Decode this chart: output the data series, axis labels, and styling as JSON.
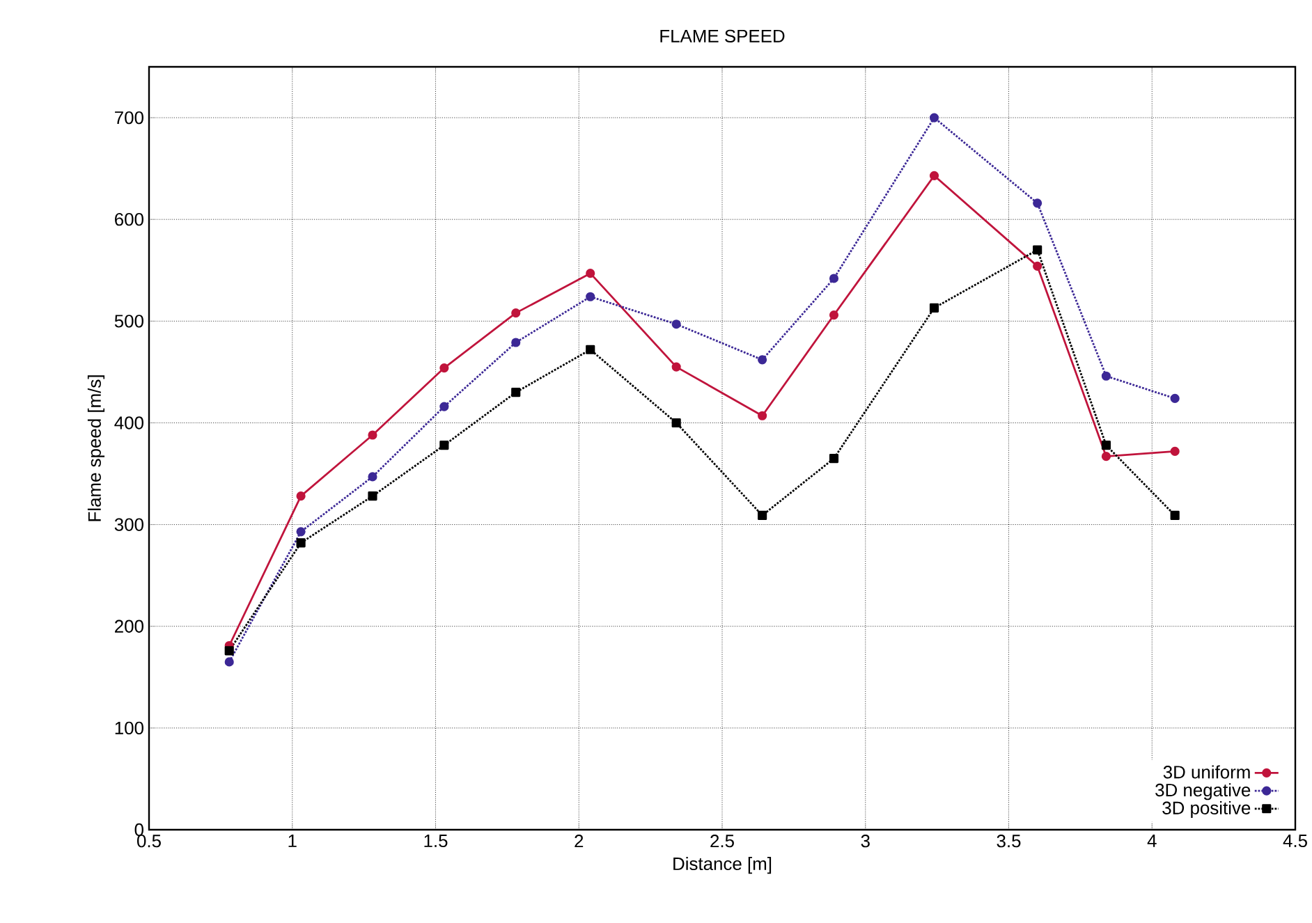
{
  "chart_data": {
    "type": "line",
    "title": "FLAME SPEED",
    "xlabel": "Distance [m]",
    "ylabel": "Flame speed [m/s]",
    "x": [
      0.78,
      1.03,
      1.28,
      1.53,
      1.78,
      2.04,
      2.34,
      2.64,
      2.89,
      3.24,
      3.6,
      3.84,
      4.08
    ],
    "series": [
      {
        "name": "3D uniform",
        "color": "#c0143c",
        "marker": "circle",
        "line_style": "solid",
        "values": [
          181,
          328,
          388,
          454,
          508,
          547,
          455,
          407,
          506,
          643,
          554,
          367,
          372
        ]
      },
      {
        "name": "3D negative",
        "color": "#3c2896",
        "marker": "circle",
        "line_style": "dotted",
        "values": [
          165,
          293,
          347,
          416,
          479,
          524,
          497,
          462,
          542,
          700,
          616,
          446,
          424
        ]
      },
      {
        "name": "3D positive",
        "color": "#000000",
        "marker": "square",
        "line_style": "dotted",
        "values": [
          176,
          282,
          328,
          378,
          430,
          472,
          400,
          309,
          365,
          513,
          570,
          378,
          309
        ]
      }
    ],
    "xlim": [
      0.5,
      4.5
    ],
    "ylim": [
      0,
      750
    ],
    "xticks": [
      0.5,
      1,
      1.5,
      2,
      2.5,
      3,
      3.5,
      4,
      4.5
    ],
    "yticks": [
      0,
      100,
      200,
      300,
      400,
      500,
      600,
      700
    ],
    "grid": true,
    "legend": "bottom right"
  }
}
